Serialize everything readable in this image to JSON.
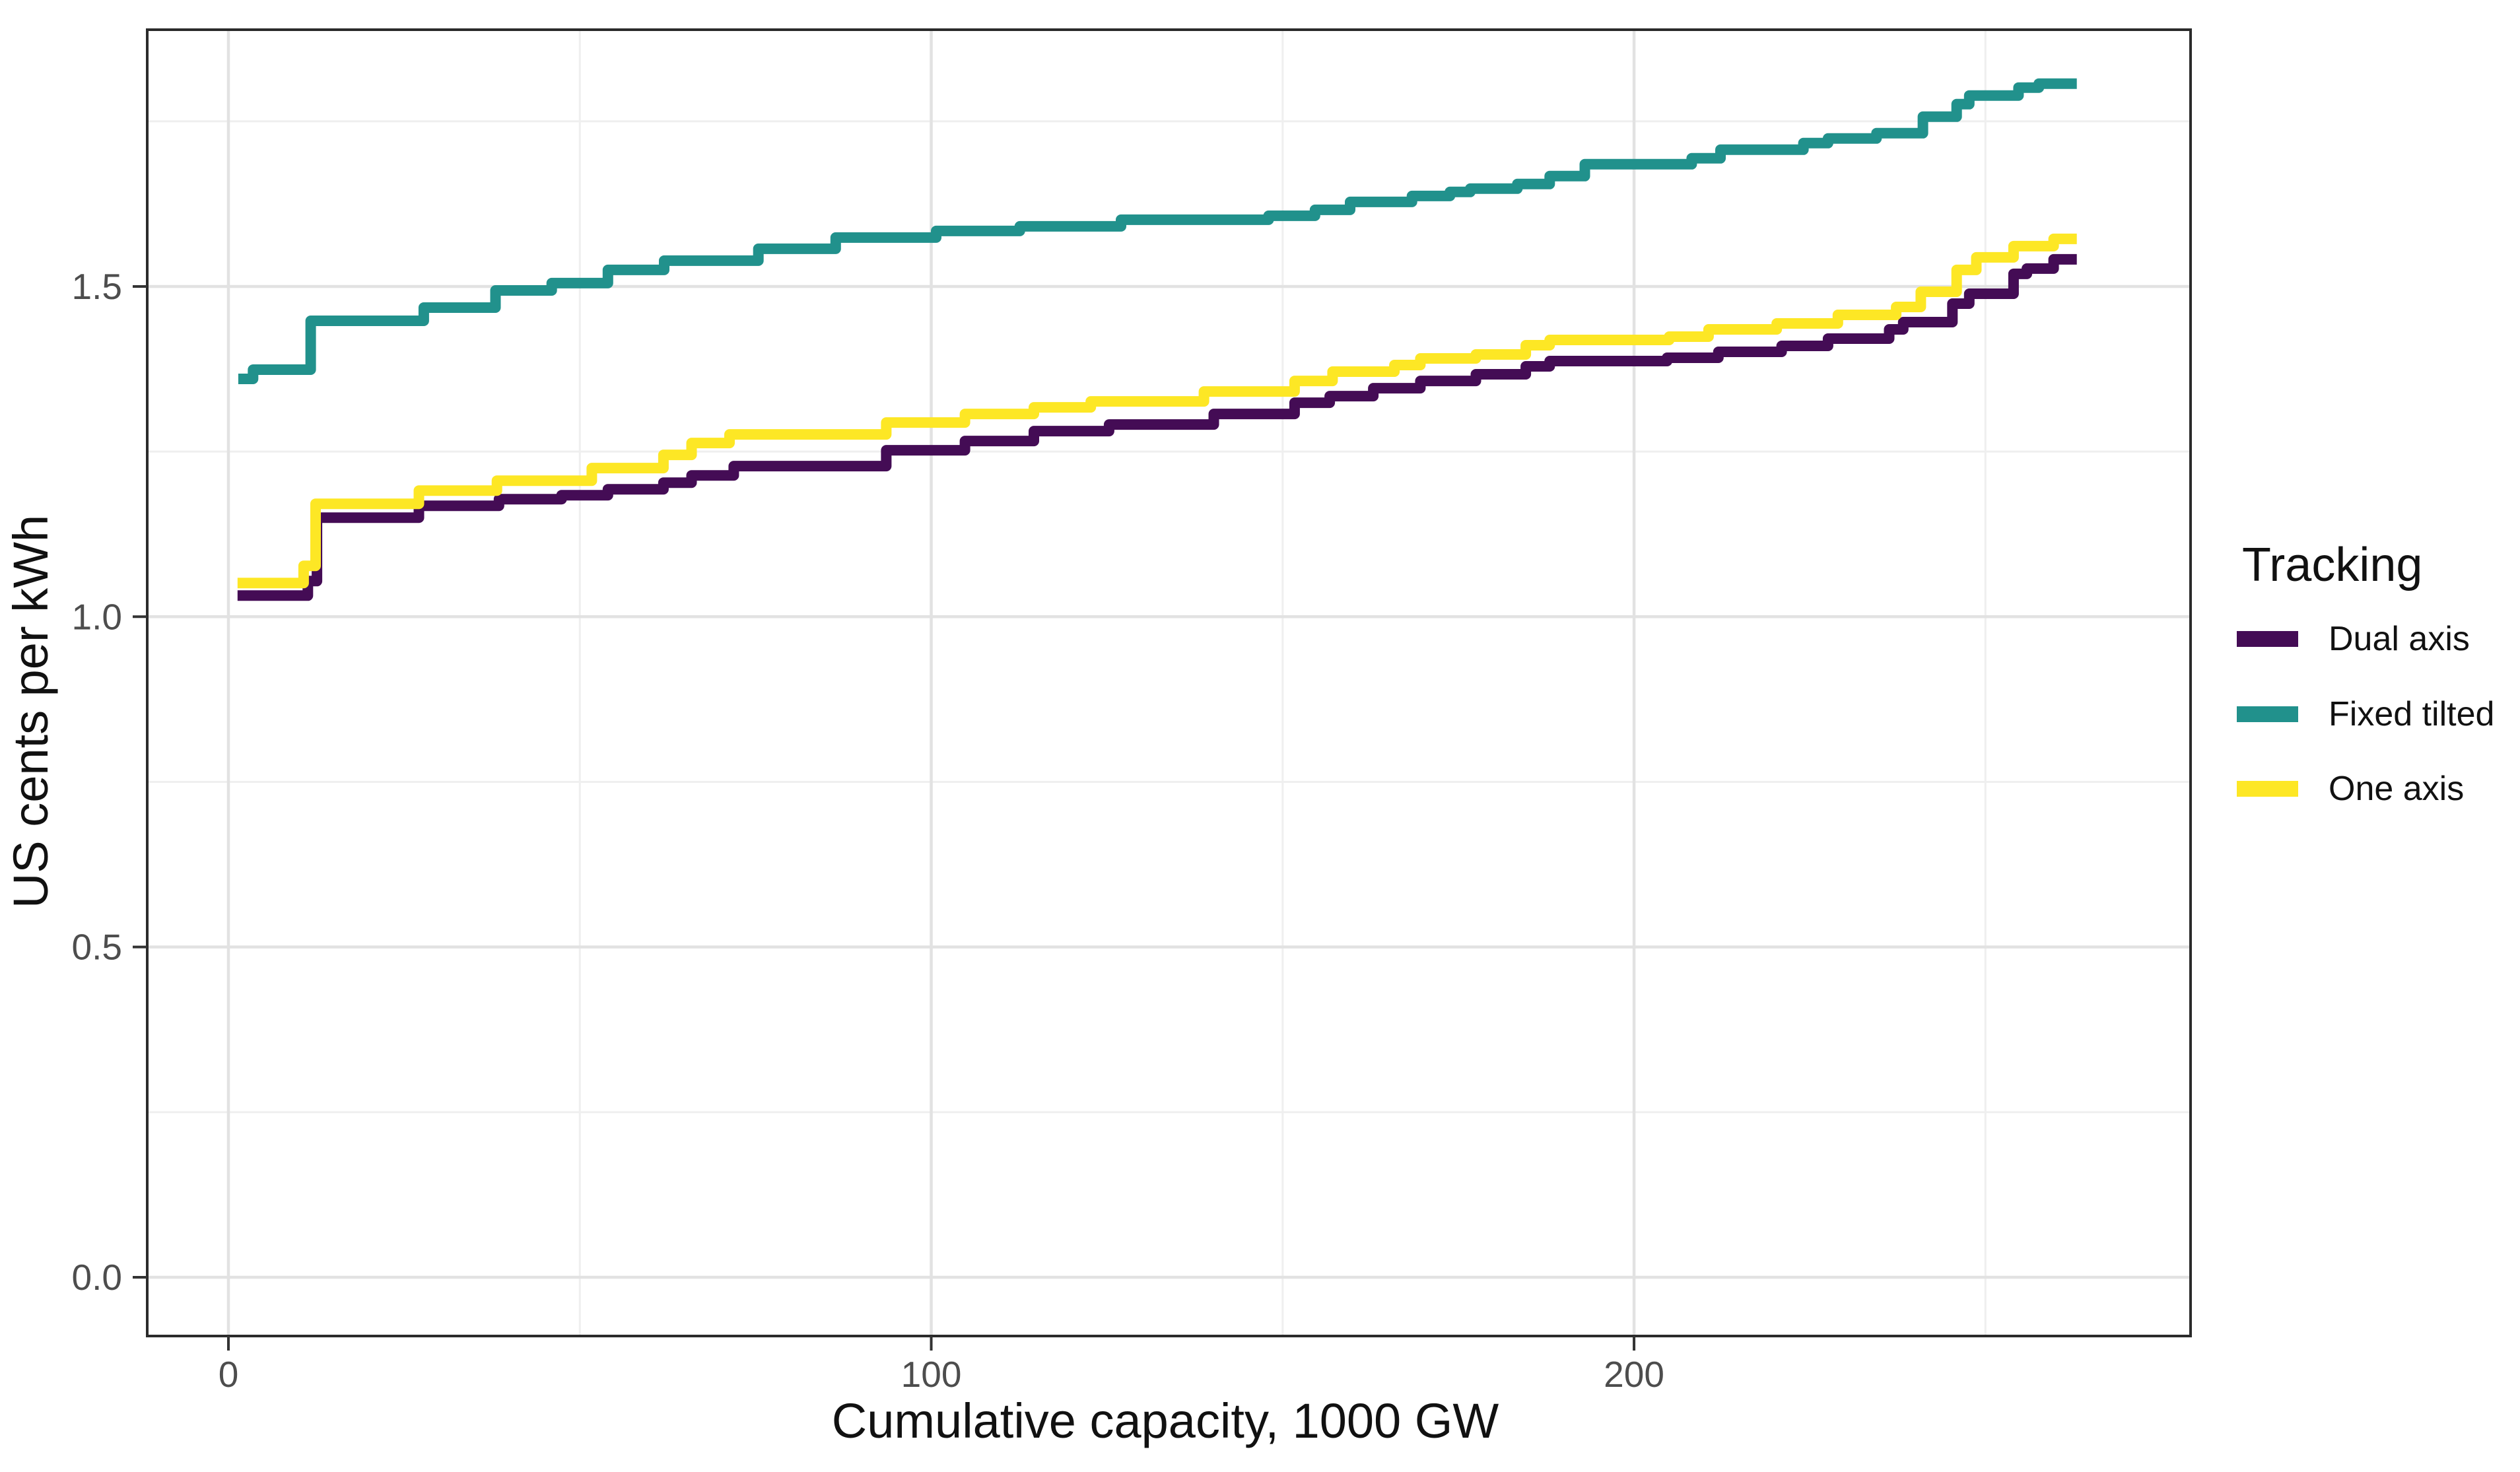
{
  "chart_data": {
    "type": "line",
    "variant": "step",
    "title": "",
    "xlabel": "Cumulative capacity, 1000 GW",
    "ylabel": "US cents per kWh",
    "legend_title": "Tracking",
    "legend_position": "right",
    "grid": true,
    "xlim": [
      -11.6,
      279.2
    ],
    "ylim": [
      -0.089,
      1.889
    ],
    "x_end": 263,
    "x_ticks": [
      {
        "value": 0,
        "label": "0"
      },
      {
        "value": 100,
        "label": "100"
      },
      {
        "value": 200,
        "label": "200"
      }
    ],
    "y_ticks": [
      {
        "value": 0.0,
        "label": "0.0"
      },
      {
        "value": 0.5,
        "label": "0.5"
      },
      {
        "value": 1.0,
        "label": "1.0"
      },
      {
        "value": 1.5,
        "label": "1.5"
      }
    ],
    "x_minor": [
      50,
      150,
      250
    ],
    "y_minor": [
      0.25,
      0.75,
      1.25,
      1.75
    ],
    "series": [
      {
        "name": "Dual axis",
        "color": "#440C55",
        "points": [
          [
            1.3,
            1.032
          ],
          [
            11.3,
            1.054
          ],
          [
            12.6,
            1.15
          ],
          [
            27.1,
            1.168
          ],
          [
            38.5,
            1.178
          ],
          [
            47.4,
            1.184
          ],
          [
            54,
            1.193
          ],
          [
            61.9,
            1.203
          ],
          [
            65.9,
            1.214
          ],
          [
            71.9,
            1.228
          ],
          [
            93.6,
            1.252
          ],
          [
            104.8,
            1.266
          ],
          [
            114.6,
            1.281
          ],
          [
            125.3,
            1.291
          ],
          [
            140.2,
            1.307
          ],
          [
            151.7,
            1.324
          ],
          [
            156.7,
            1.334
          ],
          [
            162.9,
            1.346
          ],
          [
            169.6,
            1.357
          ],
          [
            177.5,
            1.367
          ],
          [
            184.6,
            1.379
          ],
          [
            188,
            1.387
          ],
          [
            204.7,
            1.392
          ],
          [
            212,
            1.401
          ],
          [
            221,
            1.41
          ],
          [
            227.6,
            1.421
          ],
          [
            236.3,
            1.435
          ],
          [
            238.3,
            1.446
          ],
          [
            245.3,
            1.474
          ],
          [
            247.7,
            1.489
          ],
          [
            254,
            1.519
          ],
          [
            255.9,
            1.527
          ],
          [
            259.7,
            1.541
          ],
          [
            263,
            1.541
          ]
        ]
      },
      {
        "name": "Fixed tilted",
        "color": "#21918C",
        "points": [
          [
            1.4,
            1.36
          ],
          [
            3.5,
            1.374
          ],
          [
            11.7,
            1.448
          ],
          [
            27.8,
            1.468
          ],
          [
            38,
            1.494
          ],
          [
            46,
            1.505
          ],
          [
            54,
            1.525
          ],
          [
            62,
            1.539
          ],
          [
            75.4,
            1.557
          ],
          [
            86.4,
            1.574
          ],
          [
            100.7,
            1.584
          ],
          [
            112.6,
            1.591
          ],
          [
            127,
            1.601
          ],
          [
            148,
            1.607
          ],
          [
            154.6,
            1.616
          ],
          [
            159.6,
            1.628
          ],
          [
            168.4,
            1.637
          ],
          [
            173.8,
            1.643
          ],
          [
            176.7,
            1.648
          ],
          [
            183.4,
            1.655
          ],
          [
            188,
            1.667
          ],
          [
            193,
            1.685
          ],
          [
            208.2,
            1.694
          ],
          [
            212.3,
            1.707
          ],
          [
            224.1,
            1.717
          ],
          [
            227.6,
            1.724
          ],
          [
            234.5,
            1.732
          ],
          [
            241.1,
            1.757
          ],
          [
            245.9,
            1.776
          ],
          [
            247.7,
            1.789
          ],
          [
            254.7,
            1.801
          ],
          [
            257.6,
            1.807
          ],
          [
            263,
            1.807
          ]
        ]
      },
      {
        "name": "One axis",
        "color": "#FDE725",
        "points": [
          [
            1.3,
            1.051
          ],
          [
            10.7,
            1.077
          ],
          [
            12.4,
            1.171
          ],
          [
            27.1,
            1.191
          ],
          [
            38.2,
            1.206
          ],
          [
            51.7,
            1.225
          ],
          [
            61.9,
            1.245
          ],
          [
            65.9,
            1.263
          ],
          [
            71.3,
            1.276
          ],
          [
            93.6,
            1.294
          ],
          [
            104.8,
            1.307
          ],
          [
            114.6,
            1.317
          ],
          [
            122.7,
            1.326
          ],
          [
            138.8,
            1.341
          ],
          [
            151.7,
            1.357
          ],
          [
            157.1,
            1.371
          ],
          [
            165.9,
            1.381
          ],
          [
            169.6,
            1.391
          ],
          [
            177.5,
            1.397
          ],
          [
            184.6,
            1.411
          ],
          [
            188,
            1.419
          ],
          [
            205,
            1.424
          ],
          [
            210.6,
            1.435
          ],
          [
            220.3,
            1.444
          ],
          [
            229,
            1.457
          ],
          [
            237.3,
            1.469
          ],
          [
            240.8,
            1.492
          ],
          [
            245.9,
            1.525
          ],
          [
            248.7,
            1.544
          ],
          [
            254,
            1.561
          ],
          [
            259.7,
            1.572
          ],
          [
            263,
            1.572
          ]
        ]
      }
    ]
  }
}
